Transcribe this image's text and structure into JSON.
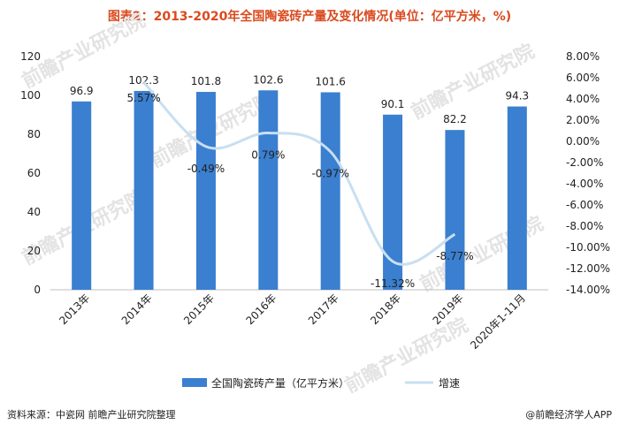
{
  "title": "图表2：2013-2020年全国陶瓷砖产量及变化情况(单位：亿平方米，%)",
  "source": "资料来源：中瓷网 前瞻产业研究院整理",
  "credit": "@前瞻经济学人APP",
  "watermark": "前瞻产业研究院",
  "colors": {
    "bar": "#3a7fd0",
    "line": "#c8dff1",
    "title": "#d94a1e"
  },
  "chart_data": {
    "type": "bar",
    "categories": [
      "2013年",
      "2014年",
      "2015年",
      "2016年",
      "2017年",
      "2018年",
      "2019年",
      "2020年1-11月"
    ],
    "series": [
      {
        "name": "全国陶瓷砖产量（亿平方米）",
        "type": "bar",
        "axis": "left",
        "values": [
          96.9,
          102.3,
          101.8,
          102.6,
          101.6,
          90.1,
          82.2,
          94.3
        ],
        "labels": [
          "96.9",
          "102.3",
          "101.8",
          "102.6",
          "101.6",
          "90.1",
          "82.2",
          "94.3"
        ]
      },
      {
        "name": "增速",
        "type": "line",
        "axis": "right",
        "smooth": true,
        "values": [
          null,
          5.57,
          -0.49,
          0.79,
          -0.97,
          -11.32,
          -8.77,
          null
        ],
        "labels": [
          "",
          "5.57%",
          "-0.49%",
          "0.79%",
          "-0.97%",
          "-11.32%",
          "-8.77%",
          ""
        ]
      }
    ],
    "y_left": {
      "min": 0,
      "max": 120,
      "ticks": [
        "0",
        "20",
        "40",
        "60",
        "80",
        "100",
        "120"
      ]
    },
    "y_right": {
      "min": -14,
      "max": 8,
      "ticks": [
        "-14.00%",
        "-12.00%",
        "-10.00%",
        "-8.00%",
        "-6.00%",
        "-4.00%",
        "-2.00%",
        "0.00%",
        "2.00%",
        "4.00%",
        "6.00%",
        "8.00%"
      ]
    },
    "grid": false,
    "legend_position": "bottom"
  }
}
